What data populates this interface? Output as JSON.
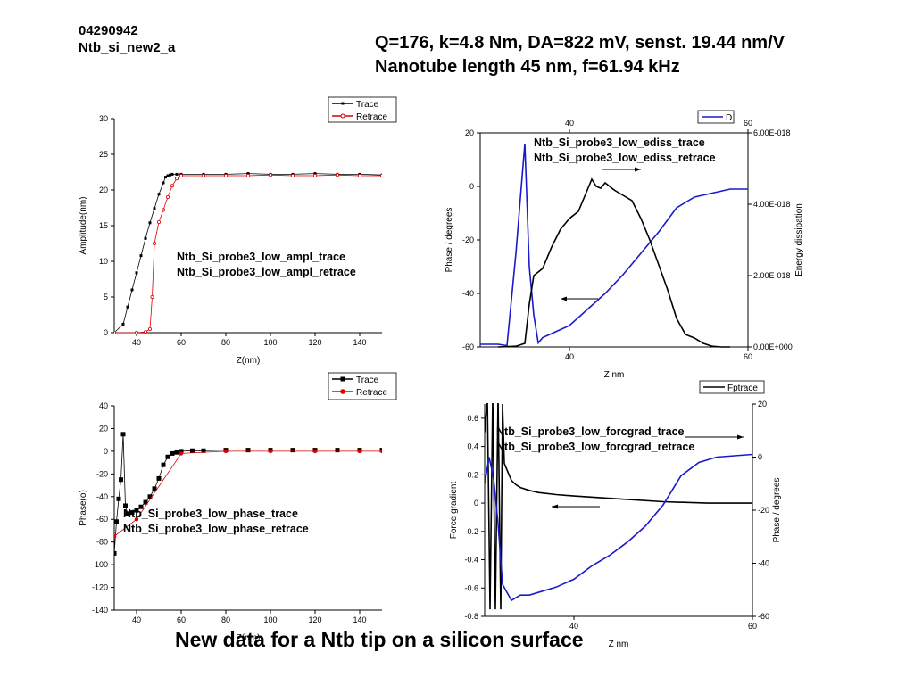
{
  "page": {
    "sample_id": "04290942",
    "sample_name": "Ntb_si_new2_a",
    "header_line1": "Q=176, k=4.8 Nm, DA=822 mV, senst. 19.44 nm/V",
    "header_line2": "Nanotube length 45 nm, f=61.94 kHz",
    "footer": "New data for a Ntb tip on a silicon surface"
  },
  "chart_data": [
    {
      "id": "amplitude",
      "type": "line",
      "xlabel": "Z(nm)",
      "ylabel": "Amplitude(nm)",
      "xlim": [
        30,
        150
      ],
      "ylim": [
        0,
        30
      ],
      "xticks": [
        40,
        60,
        80,
        100,
        120,
        140
      ],
      "yticks": [
        0,
        5,
        10,
        15,
        20,
        25,
        30
      ],
      "legend": "top-right",
      "annotations": [
        "Ntb_Si_probe3_low_ampl_trace",
        "Ntb_Si_probe3_low_ampl_retrace"
      ],
      "series": [
        {
          "name": "Trace",
          "color": "#000000",
          "marker": "square-small",
          "x": [
            30,
            34,
            36,
            38,
            40,
            42,
            44,
            46,
            48,
            50,
            52,
            53,
            54,
            55,
            56,
            58,
            60,
            70,
            80,
            90,
            100,
            110,
            120,
            130,
            140,
            150
          ],
          "y": [
            0,
            1.2,
            3.6,
            6.0,
            8.4,
            10.8,
            13.2,
            15.4,
            17.4,
            19.4,
            21.0,
            21.8,
            22.0,
            22.1,
            22.2,
            22.2,
            22.2,
            22.2,
            22.2,
            22.3,
            22.2,
            22.2,
            22.3,
            22.2,
            22.2,
            22.1
          ]
        },
        {
          "name": "Retrace",
          "color": "#dd0000",
          "marker": "circle-open",
          "x": [
            30,
            40,
            44,
            46,
            47,
            48,
            50,
            52,
            54,
            56,
            58,
            60,
            70,
            80,
            90,
            100,
            110,
            120,
            130,
            140,
            150
          ],
          "y": [
            0,
            0,
            0.1,
            0.5,
            5.0,
            12.5,
            15.5,
            17.2,
            19.0,
            20.6,
            21.6,
            22.0,
            22.0,
            22.0,
            22.0,
            22.1,
            22.0,
            22.0,
            22.1,
            22.0,
            22.0
          ]
        }
      ]
    },
    {
      "id": "phase",
      "type": "line",
      "xlabel": "Z(nm)",
      "ylabel": "Phase(o)",
      "xlim": [
        30,
        150
      ],
      "ylim": [
        -140,
        40
      ],
      "xticks": [
        40,
        60,
        80,
        100,
        120,
        140
      ],
      "yticks": [
        -140,
        -120,
        -100,
        -80,
        -60,
        -40,
        -20,
        0,
        20,
        40
      ],
      "legend": "top-right",
      "annotations": [
        "Ntb_Si_probe3_low_phase_trace",
        "Ntb_Si_probe3_low_phase_retrace"
      ],
      "series": [
        {
          "name": "Trace",
          "color": "#000000",
          "marker": "square",
          "x": [
            30,
            31,
            32,
            33,
            34,
            35,
            36,
            38,
            40,
            42,
            44,
            46,
            48,
            50,
            52,
            54,
            56,
            58,
            60,
            65,
            70,
            80,
            90,
            100,
            110,
            120,
            130,
            140,
            150
          ],
          "y": [
            -90,
            -62,
            -42,
            -25,
            15,
            -48,
            -55,
            -54,
            -52,
            -49,
            -45,
            -40,
            -33,
            -24,
            -12,
            -5,
            -2,
            -1,
            0,
            0.5,
            0.5,
            1,
            1,
            1,
            1,
            1,
            1,
            1,
            1
          ]
        },
        {
          "name": "Retrace",
          "color": "#dd0000",
          "marker": "circle-filled",
          "x": [
            30,
            40,
            60,
            80,
            100,
            120,
            140,
            150
          ],
          "y": [
            -75,
            -60,
            -2,
            0,
            0,
            0,
            0,
            0
          ]
        }
      ]
    },
    {
      "id": "ediss",
      "type": "line",
      "xlabel": "Z nm",
      "ylabel": "Phase / degrees",
      "ylabel_right": "Energy dissipation",
      "xlim": [
        30,
        60
      ],
      "ylim": [
        -60,
        20
      ],
      "ylim_right": [
        0,
        6e-18
      ],
      "xticks": [
        40,
        60
      ],
      "xticks_top": [
        40,
        60
      ],
      "yticks": [
        -60,
        -40,
        -20,
        0,
        20
      ],
      "yticks_right": [
        "0.00E+000",
        "2.00E-018",
        "4.00E-018",
        "6.00E-018"
      ],
      "legend": "top-right",
      "annotations": [
        "Ntb_Si_probe3_low_ediss_trace",
        "Ntb_Si_probe3_low_ediss_retrace"
      ],
      "series": [
        {
          "name": "D",
          "color": "#1a1acc",
          "axis": "left",
          "x": [
            30,
            32,
            33,
            34,
            35,
            35.5,
            36,
            36.5,
            37,
            38,
            40,
            42,
            44,
            46,
            48,
            50,
            52,
            54,
            56,
            58,
            60
          ],
          "y": [
            -59,
            -59,
            -59.5,
            -25,
            16,
            -30,
            -48,
            -58.5,
            -56.5,
            -55,
            -52,
            -46,
            -40,
            -33,
            -25,
            -17,
            -8,
            -4,
            -2.5,
            -1,
            -1
          ]
        },
        {
          "name": "",
          "color": "#000000",
          "axis": "right",
          "x": [
            32,
            34,
            35,
            35.5,
            36,
            37,
            38,
            39,
            40,
            41,
            42,
            42.5,
            43,
            43.5,
            44,
            44.5,
            45,
            46,
            47,
            48,
            49,
            50,
            51,
            52,
            53,
            54,
            55,
            56,
            57,
            58
          ],
          "y": [
            0,
            2e-20,
            1e-19,
            1.2e-18,
            2e-18,
            2.2e-18,
            2.8e-18,
            3.3e-18,
            3.6e-18,
            3.8e-18,
            4.4e-18,
            4.7e-18,
            4.5e-18,
            4.45e-18,
            4.6e-18,
            4.5e-18,
            4.4e-18,
            4.25e-18,
            4.1e-18,
            3.6e-18,
            3e-18,
            2.3e-18,
            1.6e-18,
            8e-19,
            3.5e-19,
            2.5e-19,
            1e-19,
            2e-20,
            0,
            0
          ]
        }
      ]
    },
    {
      "id": "forcgrad",
      "type": "line",
      "xlabel": "Z nm",
      "ylabel": "Force gradient",
      "ylabel_right": "Phase / degrees",
      "xlim": [
        30,
        60
      ],
      "ylim": [
        -0.8,
        0.7
      ],
      "ylim_right": [
        -60,
        20
      ],
      "xticks": [
        40,
        60
      ],
      "yticks": [
        -0.8,
        -0.6,
        -0.4,
        -0.2,
        0.0,
        0.2,
        0.4,
        0.6
      ],
      "yticks_right": [
        -60,
        -40,
        -20,
        0,
        20
      ],
      "legend": "top-right",
      "annotations": [
        "Ntb_Si_probe3_low_forcgrad_trace",
        "Ntb_Si_probe3_low_forcgrad_retrace"
      ],
      "series": [
        {
          "name": "Fptrace",
          "color": "#000000",
          "axis": "left",
          "x": [
            30,
            30.3,
            30.6,
            30.9,
            31.2,
            31.5,
            31.8,
            32.0,
            32.2,
            32.4,
            32.6,
            32.8,
            33.0,
            33.5,
            34,
            35,
            36,
            38,
            40,
            45,
            50,
            55,
            60
          ],
          "y": [
            0.5,
            0.75,
            -0.75,
            0.75,
            -0.75,
            0.75,
            -0.75,
            0.7,
            0.28,
            0.25,
            0.22,
            0.19,
            0.16,
            0.13,
            0.11,
            0.09,
            0.075,
            0.06,
            0.05,
            0.03,
            0.01,
            0.0,
            0.0
          ]
        },
        {
          "name": "",
          "color": "#1a1acc",
          "axis": "right",
          "x": [
            30,
            30.5,
            31,
            31.5,
            32,
            33,
            34,
            35,
            36,
            38,
            40,
            42,
            44,
            46,
            48,
            50,
            52,
            54,
            56,
            58,
            60
          ],
          "y": [
            -10,
            0,
            -8,
            -25,
            -48,
            -54,
            -52,
            -52,
            -51,
            -49,
            -46,
            -41,
            -37,
            -32,
            -26,
            -18,
            -7,
            -2,
            0,
            0.5,
            1
          ]
        }
      ]
    }
  ]
}
